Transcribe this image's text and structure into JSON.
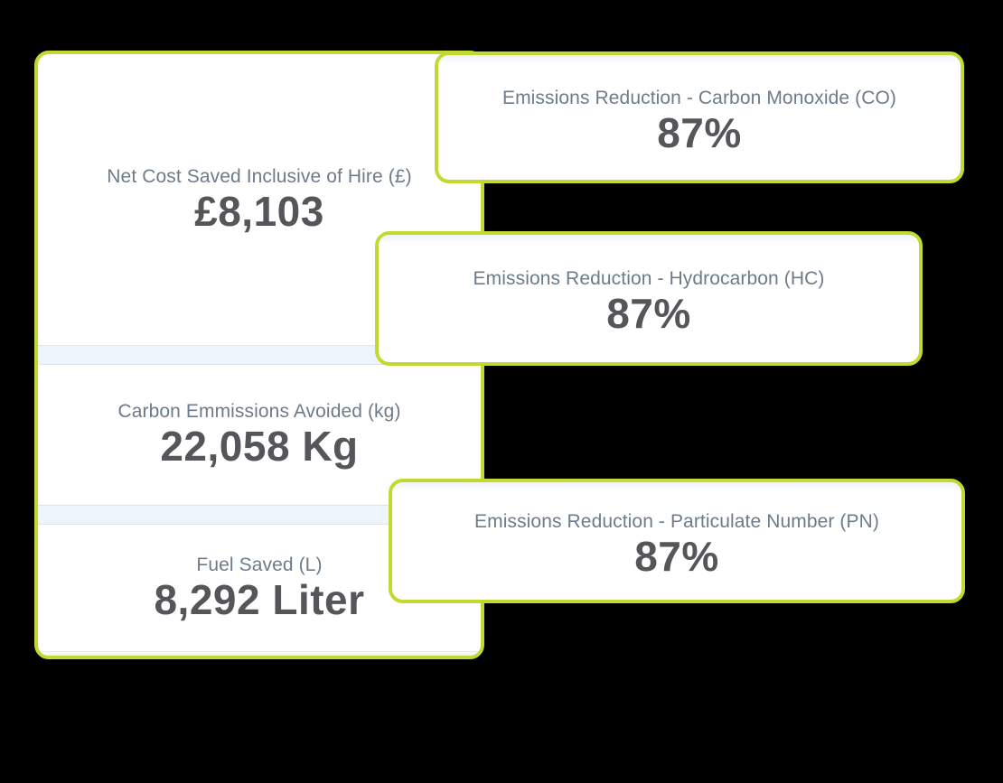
{
  "canvas": {
    "background": "#000000"
  },
  "theme": {
    "card_border": "#c3d930",
    "card_background": "#ffffff",
    "label_color": "#6d7b8b",
    "value_color": "#545659",
    "divider_color": "#eef4fc"
  },
  "summary_card": {
    "stats": [
      {
        "label": "Net Cost Saved Inclusive of Hire (£)",
        "value": "£8,103"
      },
      {
        "label": "Carbon Emmissions Avoided (kg)",
        "value": "22,058 Kg"
      },
      {
        "label": "Fuel Saved (L)",
        "value": "8,292 Liter"
      }
    ]
  },
  "emission_cards": [
    {
      "label": "Emissions Reduction - Carbon Monoxide (CO)",
      "value": "87%"
    },
    {
      "label": "Emissions Reduction - Hydrocarbon (HC)",
      "value": "87%"
    },
    {
      "label": "Emissions Reduction - Particulate Number (PN)",
      "value": "87%"
    }
  ]
}
